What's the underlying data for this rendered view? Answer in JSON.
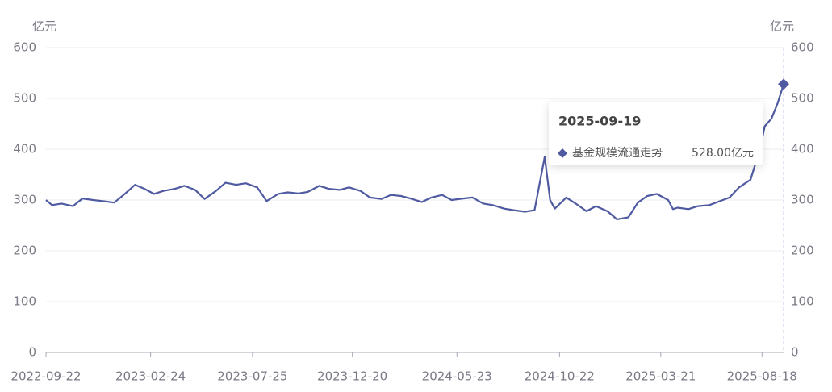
{
  "chart_data": {
    "type": "line",
    "y_label": "亿元",
    "y2_label": "亿元",
    "x": [
      "2022-09-22",
      "2022-10-01",
      "2022-10-15",
      "2022-11-01",
      "2022-11-15",
      "2022-12-01",
      "2022-12-15",
      "2023-01-01",
      "2023-01-15",
      "2023-02-01",
      "2023-02-15",
      "2023-03-01",
      "2023-03-15",
      "2023-04-01",
      "2023-04-15",
      "2023-05-01",
      "2023-05-15",
      "2023-06-01",
      "2023-06-15",
      "2023-07-01",
      "2023-07-15",
      "2023-08-01",
      "2023-08-15",
      "2023-09-01",
      "2023-09-15",
      "2023-10-01",
      "2023-10-15",
      "2023-11-01",
      "2023-11-15",
      "2023-12-01",
      "2023-12-15",
      "2024-01-01",
      "2024-01-15",
      "2024-02-01",
      "2024-02-15",
      "2024-03-01",
      "2024-03-15",
      "2024-04-01",
      "2024-04-15",
      "2024-05-01",
      "2024-05-15",
      "2024-06-01",
      "2024-06-15",
      "2024-07-01",
      "2024-07-15",
      "2024-08-01",
      "2024-08-15",
      "2024-09-01",
      "2024-09-15",
      "2024-09-30",
      "2024-10-08",
      "2024-10-15",
      "2024-11-01",
      "2024-11-15",
      "2024-12-01",
      "2024-12-15",
      "2025-01-01",
      "2025-01-15",
      "2025-02-01",
      "2025-02-15",
      "2025-03-01",
      "2025-03-15",
      "2025-04-01",
      "2025-04-08",
      "2025-04-15",
      "2025-05-01",
      "2025-05-15",
      "2025-06-01",
      "2025-06-15",
      "2025-07-01",
      "2025-07-15",
      "2025-08-01",
      "2025-08-15",
      "2025-08-22",
      "2025-09-01",
      "2025-09-10",
      "2025-09-19"
    ],
    "series": [
      {
        "name": "基金规模流通走势",
        "color": "#4f5aa1",
        "values": [
          300,
          290,
          293,
          288,
          303,
          300,
          298,
          295,
          310,
          330,
          322,
          312,
          318,
          322,
          328,
          320,
          302,
          318,
          334,
          330,
          333,
          325,
          298,
          312,
          315,
          313,
          316,
          328,
          322,
          320,
          325,
          318,
          305,
          302,
          310,
          308,
          303,
          296,
          305,
          310,
          300,
          303,
          305,
          293,
          290,
          283,
          280,
          277,
          280,
          385,
          300,
          283,
          305,
          293,
          278,
          288,
          278,
          262,
          266,
          295,
          308,
          312,
          300,
          282,
          285,
          282,
          288,
          290,
          297,
          305,
          325,
          340,
          400,
          445,
          460,
          490,
          528
        ]
      }
    ],
    "xlim": [
      "2022-09-22",
      "2025-09-19"
    ],
    "xticks": [
      "2022-09-22",
      "2023-02-24",
      "2023-07-25",
      "2023-12-20",
      "2024-05-23",
      "2024-10-22",
      "2025-03-21",
      "2025-08-18"
    ],
    "ylim": [
      0,
      600
    ],
    "yticks": [
      0,
      100,
      200,
      300,
      400,
      500,
      600
    ],
    "y2lim": [
      0,
      600
    ],
    "y2ticks": [
      0,
      100,
      200,
      300,
      400,
      500,
      600
    ],
    "grid": true,
    "tooltip_value": "528.00亿元"
  }
}
